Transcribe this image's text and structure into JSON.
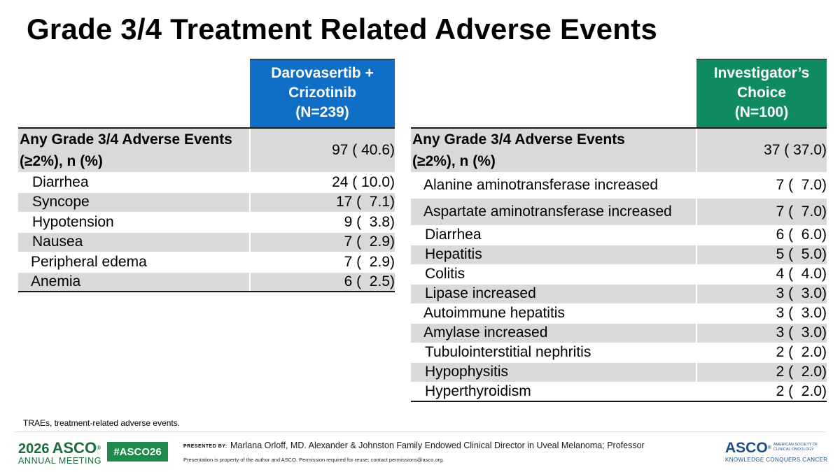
{
  "title": "Grade 3/4 Treatment Related Adverse Events",
  "colors": {
    "left_header_bg": "#0f6fc6",
    "right_header_bg": "#108a5f",
    "row_shade": "#d9d9d9"
  },
  "left_table": {
    "header": [
      "Darovasertib +",
      "Crizotinib",
      "(N=239)"
    ],
    "any_label": [
      "Any Grade 3/4 Adverse Events",
      "(≥2%), n (%)"
    ],
    "any_value": "97 ( 40.6)",
    "rows": [
      {
        "event": "Diarrhea",
        "value": "24 ( 10.0)"
      },
      {
        "event": "Syncope",
        "value": "17 (  7.1)"
      },
      {
        "event": "Hypotension",
        "value": "9 (  3.8)"
      },
      {
        "event": "Nausea",
        "value": "7 (  2.9)"
      },
      {
        "event": "Peripheral edema",
        "value": "7 (  2.9)"
      },
      {
        "event": "Anemia",
        "value": "6 (  2.5)"
      }
    ]
  },
  "right_table": {
    "header": [
      "Investigator’s",
      "Choice",
      "(N=100)"
    ],
    "any_label": [
      "Any Grade 3/4 Adverse Events",
      "(≥2%), n (%)"
    ],
    "any_value": "37 ( 37.0)",
    "rows": [
      {
        "event": "Alanine aminotransferase increased",
        "value": "7 (  7.0)"
      },
      {
        "event": "Aspartate aminotransferase increased",
        "value": "7 (  7.0)"
      },
      {
        "event": "Diarrhea",
        "value": "6 (  6.0)"
      },
      {
        "event": "Hepatitis",
        "value": "5 (  5.0)"
      },
      {
        "event": "Colitis",
        "value": "4 (  4.0)"
      },
      {
        "event": "Lipase increased",
        "value": "3 (  3.0)"
      },
      {
        "event": "Autoimmune hepatitis",
        "value": "3 (  3.0)"
      },
      {
        "event": "Amylase increased",
        "value": "3 (  3.0)"
      },
      {
        "event": "Tubulointerstitial nephritis",
        "value": "2 (  2.0)"
      },
      {
        "event": "Hypophysitis",
        "value": "2 (  2.0)"
      },
      {
        "event": "Hyperthyroidism",
        "value": "2 (  2.0)"
      }
    ]
  },
  "footnote": "TRAEs, treatment-related adverse events.",
  "footer": {
    "meeting_year": "2026",
    "meeting_brand": "ASCO",
    "meeting_sub": "ANNUAL MEETING",
    "hashtag": "#ASCO26",
    "presented_by": "PRESENTED BY:",
    "presenter": "Marlana Orloff, MD. Alexander & Johnston Family Endowed Clinical Director in Uveal Melanoma; Professor",
    "property_note": "Presentation is property of the author and ASCO. Permission required for reuse; contact permissions@asco.org.",
    "asco_wordmark": "ASCO",
    "asco_side": [
      "AMERICAN SOCIETY OF",
      "CLINICAL ONCOLOGY"
    ],
    "asco_tagline": "KNOWLEDGE CONQUERS CANCER"
  }
}
